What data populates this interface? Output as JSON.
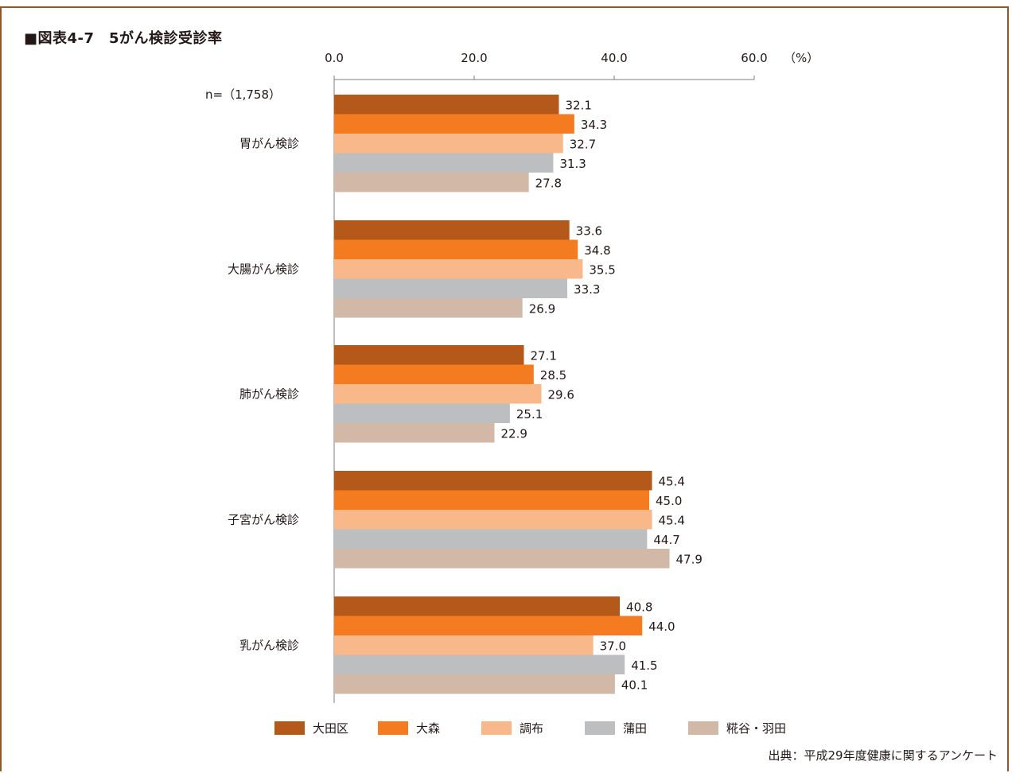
{
  "title": "■図表4-7　5がん検診受診率",
  "n_label": "n=（1,758）",
  "source": "出典：平成29年度健康に関するアンケート",
  "unit_label": "（%）",
  "colors": [
    "#b5591b",
    "#f47b20",
    "#f9b889",
    "#bcbec0",
    "#d2b8a6"
  ],
  "chart_data": {
    "type": "bar",
    "orientation": "horizontal",
    "categories": [
      "胃がん検診",
      "大腸がん検診",
      "肺がん検診",
      "子宮がん検診",
      "乳がん検診"
    ],
    "series": [
      {
        "name": "大田区",
        "values": [
          32.1,
          33.6,
          27.1,
          45.4,
          40.8
        ]
      },
      {
        "name": "大森",
        "values": [
          34.3,
          34.8,
          28.5,
          45.0,
          44.0
        ]
      },
      {
        "name": "調布",
        "values": [
          32.7,
          35.5,
          29.6,
          45.4,
          37.0
        ]
      },
      {
        "name": "蒲田",
        "values": [
          31.3,
          33.3,
          25.1,
          44.7,
          41.5
        ]
      },
      {
        "name": "糀谷・羽田",
        "values": [
          27.8,
          26.9,
          22.9,
          47.9,
          40.1
        ]
      }
    ],
    "xticks": [
      "0.0",
      "20.0",
      "40.0",
      "60.0"
    ],
    "xlim": [
      0,
      60
    ],
    "grid": false,
    "legend": "bottom"
  }
}
